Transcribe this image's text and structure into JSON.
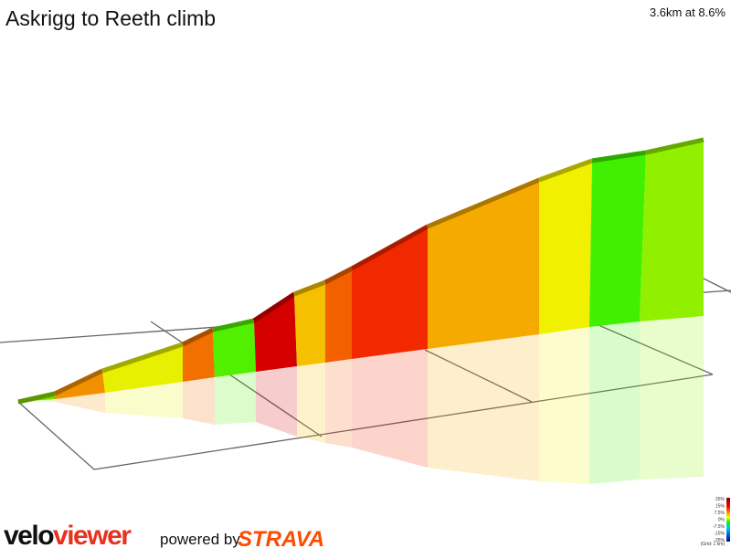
{
  "header": {
    "title": "Askrigg to Reeth climb",
    "summary": "3.6km at 8.6%"
  },
  "legend": {
    "labels": [
      "25%",
      "15%",
      "7.5%",
      "0%",
      "-7.5%",
      "-15%",
      "-25%"
    ],
    "note": "(Grid: 1 km)"
  },
  "footer": {
    "logo_a": "velo",
    "logo_b": "viewer",
    "powered": "powered by",
    "brand": "STRAVA"
  }
}
